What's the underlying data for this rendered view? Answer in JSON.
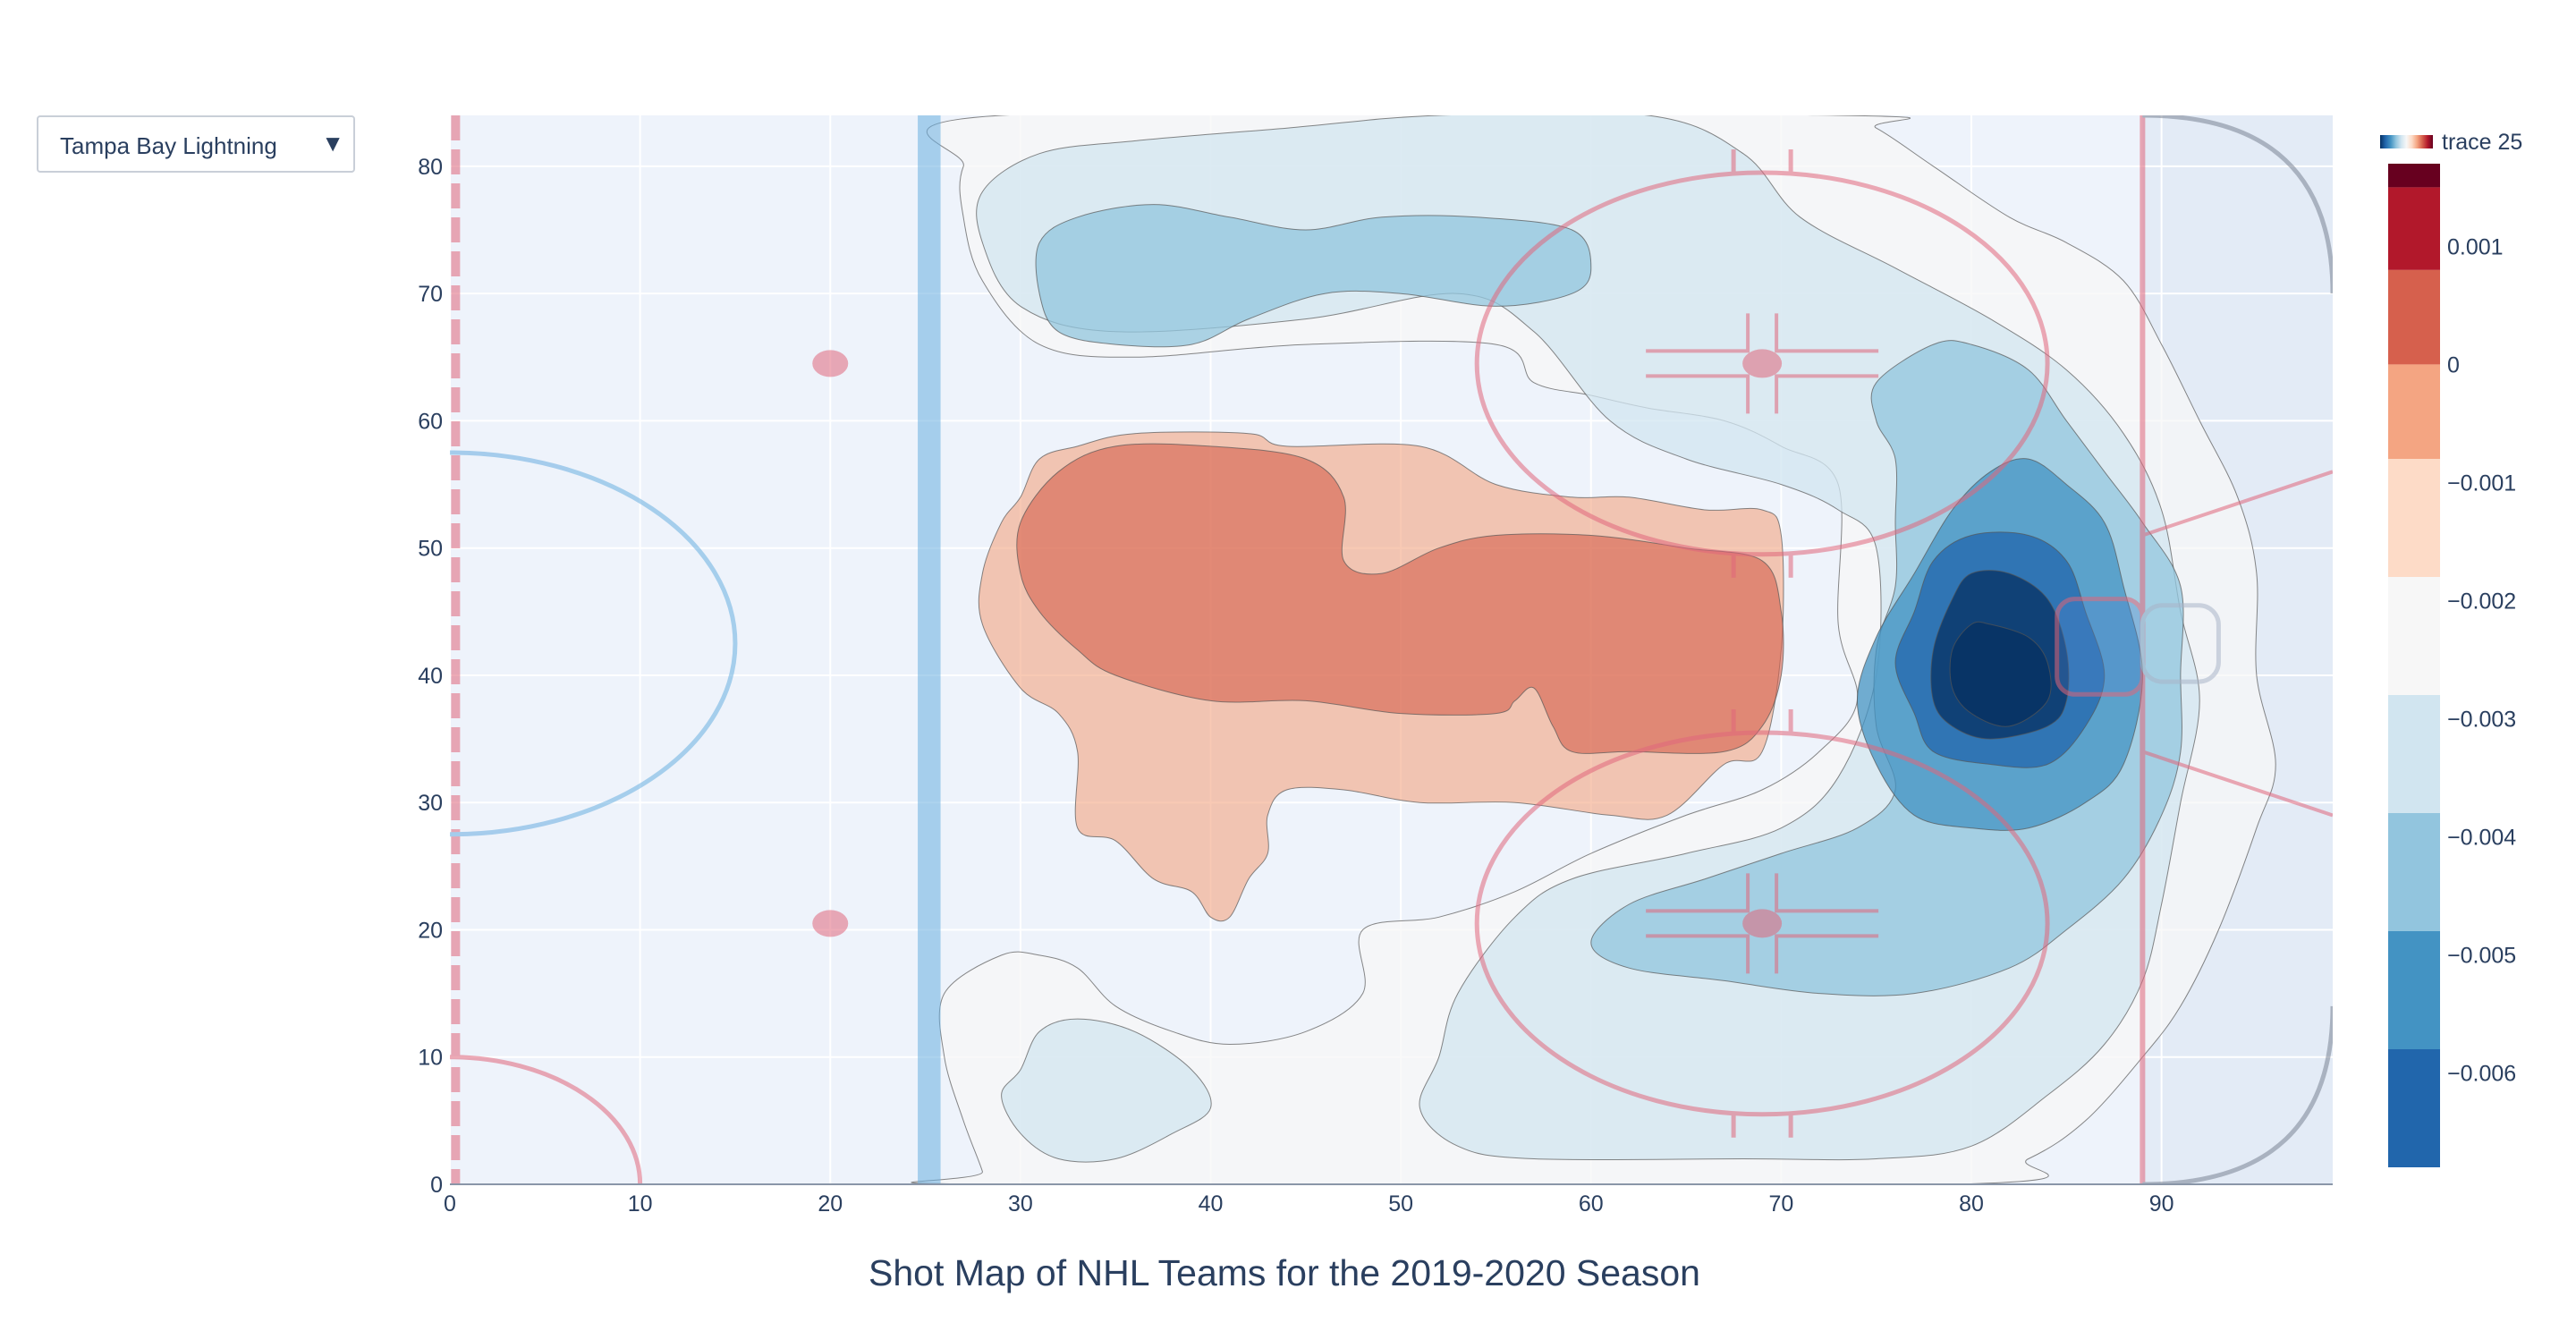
{
  "dropdown": {
    "selected": "Tampa Bay Lightning",
    "arrow": "▼"
  },
  "colors": {
    "plot_bg": "#eef3fb",
    "grid": "#ffffff",
    "axis_text": "#2a3f5f",
    "rink_red": "#e0667b",
    "rink_blue": "#6aaee0",
    "goal_crease": "#d4ddee",
    "colorscale": [
      "#053061",
      "#2166ac",
      "#4393c3",
      "#92c5de",
      "#d1e5f0",
      "#f7f7f7",
      "#fddbc7",
      "#f4a582",
      "#d6604d",
      "#b2182b",
      "#67001f"
    ]
  },
  "chart_data": {
    "type": "contour",
    "title": "Shot Map of NHL Teams for the 2019-2020 Season",
    "x_range": [
      0,
      99
    ],
    "y_range": [
      0,
      84
    ],
    "x_ticks": [
      0,
      10,
      20,
      30,
      40,
      50,
      60,
      70,
      80,
      90
    ],
    "y_ticks": [
      0,
      10,
      20,
      30,
      40,
      50,
      60,
      70,
      80
    ],
    "colorbar": {
      "title": "trace 25",
      "ticks": [
        0.001,
        0,
        -0.001,
        -0.002,
        -0.003,
        -0.004,
        -0.005,
        -0.006
      ],
      "tick_labels": [
        "0.001",
        "0",
        "−0.001",
        "−0.002",
        "−0.003",
        "−0.004",
        "−0.005",
        "−0.006"
      ],
      "levels": [
        0.0015,
        0.0008,
        0.0,
        -0.0008,
        -0.0018,
        -0.0028,
        -0.0038,
        -0.0048,
        -0.0058,
        -0.0068
      ],
      "range": [
        -0.0068,
        0.0017
      ]
    },
    "regions": [
      {
        "name": "outer-top-left",
        "level": -0.001,
        "points": [
          [
            27,
            76
          ],
          [
            28,
            71
          ],
          [
            31,
            66
          ],
          [
            36,
            65
          ],
          [
            45,
            66
          ],
          [
            55,
            66
          ],
          [
            57,
            63
          ],
          [
            60,
            62
          ],
          [
            63,
            61
          ],
          [
            67,
            60
          ],
          [
            70,
            58
          ],
          [
            73,
            55
          ],
          [
            73,
            44
          ],
          [
            74,
            38
          ],
          [
            72,
            34
          ],
          [
            69,
            31
          ],
          [
            65,
            29
          ],
          [
            60,
            26
          ],
          [
            56,
            23
          ],
          [
            52,
            21
          ],
          [
            48,
            20
          ],
          [
            48,
            15
          ],
          [
            45,
            12
          ],
          [
            41,
            11
          ],
          [
            38,
            12
          ],
          [
            35,
            14
          ],
          [
            33,
            17
          ],
          [
            31,
            18
          ],
          [
            29,
            18
          ],
          [
            26,
            15
          ],
          [
            26,
            10
          ],
          [
            27,
            5
          ],
          [
            28,
            1
          ],
          [
            28,
            0
          ],
          [
            79,
            0
          ],
          [
            83,
            2
          ],
          [
            86,
            5
          ],
          [
            89,
            10
          ],
          [
            91,
            14
          ],
          [
            93,
            20
          ],
          [
            95,
            28
          ],
          [
            96,
            33
          ],
          [
            95,
            40
          ],
          [
            95,
            48
          ],
          [
            94,
            54
          ],
          [
            92,
            60
          ],
          [
            90,
            66
          ],
          [
            88,
            71
          ],
          [
            85,
            74
          ],
          [
            82,
            76
          ],
          [
            78,
            80
          ],
          [
            75,
            83
          ],
          [
            73,
            84
          ],
          [
            29,
            84
          ],
          [
            27,
            80
          ]
        ]
      },
      {
        "name": "inner-light-top",
        "level": -0.002,
        "points": [
          [
            28,
            74
          ],
          [
            30,
            69
          ],
          [
            35,
            67
          ],
          [
            45,
            68
          ],
          [
            53,
            70
          ],
          [
            57,
            67
          ],
          [
            61,
            60
          ],
          [
            65,
            57
          ],
          [
            70,
            55
          ],
          [
            73,
            53
          ],
          [
            75,
            50
          ],
          [
            75,
            40
          ],
          [
            73,
            32
          ],
          [
            70,
            28
          ],
          [
            65,
            26
          ],
          [
            59,
            24
          ],
          [
            56,
            21
          ],
          [
            53,
            15
          ],
          [
            52,
            10
          ],
          [
            51,
            6
          ],
          [
            53,
            3
          ],
          [
            57,
            2
          ],
          [
            68,
            2
          ],
          [
            75,
            2
          ],
          [
            80,
            3
          ],
          [
            84,
            7
          ],
          [
            87,
            11
          ],
          [
            89,
            16
          ],
          [
            90,
            22
          ],
          [
            91,
            30
          ],
          [
            92,
            38
          ],
          [
            91,
            45
          ],
          [
            90,
            53
          ],
          [
            88,
            59
          ],
          [
            85,
            64
          ],
          [
            81,
            68
          ],
          [
            76,
            72
          ],
          [
            71,
            76
          ],
          [
            68,
            81
          ],
          [
            63,
            84
          ],
          [
            52,
            84
          ],
          [
            44,
            83
          ],
          [
            36,
            82
          ],
          [
            31,
            81
          ],
          [
            28,
            78
          ]
        ]
      },
      {
        "name": "inner-light-bottom-left",
        "level": -0.002,
        "points": [
          [
            30,
            9
          ],
          [
            31,
            12
          ],
          [
            33,
            13
          ],
          [
            36,
            12
          ],
          [
            39,
            9
          ],
          [
            40,
            6
          ],
          [
            38,
            4
          ],
          [
            35,
            2
          ],
          [
            32,
            2
          ],
          [
            30,
            4
          ],
          [
            29,
            7
          ]
        ]
      },
      {
        "name": "white-top-left",
        "level": -0.003,
        "points": [
          [
            31,
            74
          ],
          [
            33,
            76
          ],
          [
            37,
            77
          ],
          [
            41,
            76
          ],
          [
            45,
            75
          ],
          [
            49,
            76
          ],
          [
            54,
            76
          ],
          [
            59,
            75
          ],
          [
            60,
            72
          ],
          [
            59,
            70
          ],
          [
            55,
            69
          ],
          [
            50,
            70
          ],
          [
            46,
            70
          ],
          [
            42,
            68
          ],
          [
            39,
            66
          ],
          [
            35,
            66
          ],
          [
            32,
            67
          ],
          [
            31,
            70
          ]
        ]
      },
      {
        "name": "white-right",
        "level": -0.003,
        "points": [
          [
            75,
            63
          ],
          [
            78,
            66
          ],
          [
            80,
            66
          ],
          [
            83,
            64
          ],
          [
            85,
            60
          ],
          [
            87,
            56
          ],
          [
            89,
            52
          ],
          [
            91,
            47
          ],
          [
            91,
            40
          ],
          [
            91,
            34
          ],
          [
            90,
            29
          ],
          [
            88,
            24
          ],
          [
            85,
            20
          ],
          [
            82,
            17
          ],
          [
            77,
            15
          ],
          [
            72,
            15
          ],
          [
            67,
            16
          ],
          [
            62,
            17
          ],
          [
            60,
            19
          ],
          [
            62,
            22
          ],
          [
            66,
            24
          ],
          [
            70,
            26
          ],
          [
            74,
            28
          ],
          [
            76,
            31
          ],
          [
            75,
            36
          ],
          [
            75,
            42
          ],
          [
            76,
            47
          ],
          [
            76,
            52
          ],
          [
            76,
            57
          ],
          [
            75,
            60
          ]
        ]
      },
      {
        "name": "blue-1",
        "level": -0.004,
        "points": [
          [
            81,
            56
          ],
          [
            83,
            57
          ],
          [
            85,
            55
          ],
          [
            87,
            52
          ],
          [
            88,
            47
          ],
          [
            89,
            40
          ],
          [
            88,
            33
          ],
          [
            86,
            30
          ],
          [
            83,
            28
          ],
          [
            80,
            28
          ],
          [
            77,
            29
          ],
          [
            75,
            33
          ],
          [
            74,
            38
          ],
          [
            75,
            43
          ],
          [
            77,
            48
          ],
          [
            79,
            53
          ]
        ]
      },
      {
        "name": "blue-2",
        "level": -0.005,
        "points": [
          [
            80,
            51
          ],
          [
            83,
            51
          ],
          [
            85,
            49
          ],
          [
            86,
            45
          ],
          [
            87,
            40
          ],
          [
            86,
            36
          ],
          [
            84,
            33
          ],
          [
            81,
            33
          ],
          [
            78,
            34
          ],
          [
            77,
            37
          ],
          [
            76,
            41
          ],
          [
            77,
            45
          ],
          [
            78,
            49
          ]
        ]
      },
      {
        "name": "blue-3",
        "level": -0.006,
        "points": [
          [
            80,
            48
          ],
          [
            82,
            48
          ],
          [
            84,
            46
          ],
          [
            85,
            42
          ],
          [
            85,
            38
          ],
          [
            84,
            36
          ],
          [
            81,
            35
          ],
          [
            79,
            36
          ],
          [
            78,
            38
          ],
          [
            78,
            42
          ],
          [
            79,
            46
          ]
        ]
      },
      {
        "name": "blue-4",
        "level": -0.0068,
        "points": [
          [
            80,
            44
          ],
          [
            81,
            44
          ],
          [
            83,
            43
          ],
          [
            84,
            41
          ],
          [
            84,
            38
          ],
          [
            82,
            36
          ],
          [
            80,
            37
          ],
          [
            79,
            39
          ],
          [
            79,
            42
          ]
        ]
      },
      {
        "name": "red-mid",
        "level": 0.0,
        "points": [
          [
            30,
            54
          ],
          [
            31,
            57
          ],
          [
            33,
            58
          ],
          [
            36,
            59
          ],
          [
            42,
            59
          ],
          [
            44,
            58
          ],
          [
            51,
            58
          ],
          [
            55,
            55
          ],
          [
            59,
            54
          ],
          [
            62,
            54
          ],
          [
            66,
            53
          ],
          [
            69,
            53
          ],
          [
            70,
            51
          ],
          [
            70,
            42
          ],
          [
            69,
            34
          ],
          [
            67,
            33
          ],
          [
            64,
            29
          ],
          [
            61,
            29
          ],
          [
            56,
            30
          ],
          [
            51,
            30
          ],
          [
            47,
            31
          ],
          [
            44,
            31
          ],
          [
            43,
            29
          ],
          [
            43,
            26
          ],
          [
            42,
            24
          ],
          [
            41,
            21
          ],
          [
            40,
            21
          ],
          [
            39,
            23
          ],
          [
            37,
            24
          ],
          [
            35,
            27
          ],
          [
            33,
            28
          ],
          [
            33,
            34
          ],
          [
            32,
            37
          ],
          [
            30,
            39
          ],
          [
            28,
            44
          ],
          [
            28,
            48
          ],
          [
            29,
            52
          ]
        ]
      },
      {
        "name": "dark-red-mid",
        "level": 0.0008,
        "points": [
          [
            30,
            52
          ],
          [
            32,
            56
          ],
          [
            35,
            58
          ],
          [
            40,
            58
          ],
          [
            45,
            57
          ],
          [
            47,
            54
          ],
          [
            47,
            49
          ],
          [
            49,
            48
          ],
          [
            52,
            50
          ],
          [
            55,
            51
          ],
          [
            60,
            51
          ],
          [
            65,
            50
          ],
          [
            69,
            49
          ],
          [
            70,
            45
          ],
          [
            70,
            40
          ],
          [
            69,
            36
          ],
          [
            67,
            34
          ],
          [
            62,
            34
          ],
          [
            59,
            34
          ],
          [
            58,
            36
          ],
          [
            57,
            39
          ],
          [
            56,
            38
          ],
          [
            55,
            37
          ],
          [
            50,
            37
          ],
          [
            45,
            38
          ],
          [
            40,
            38
          ],
          [
            35,
            40
          ],
          [
            33,
            42
          ],
          [
            31,
            45
          ],
          [
            30,
            48
          ]
        ]
      }
    ]
  }
}
